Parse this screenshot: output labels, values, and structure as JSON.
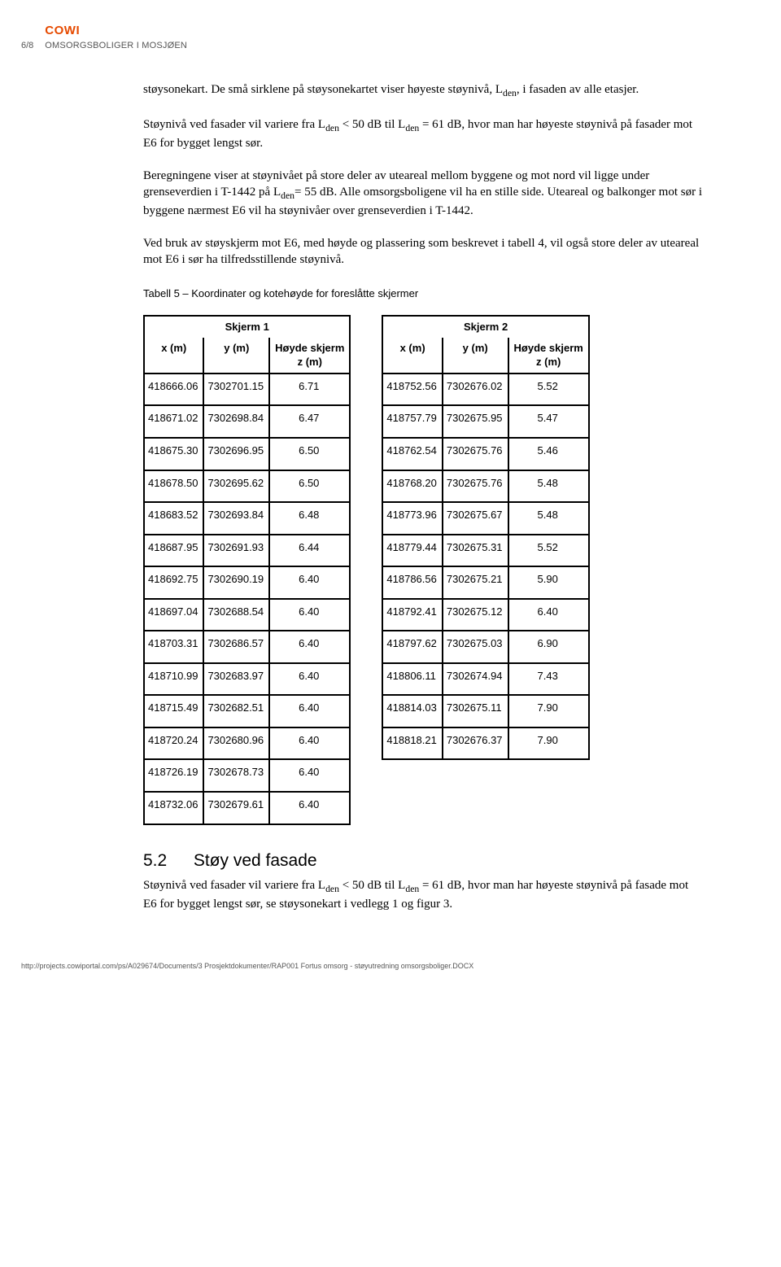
{
  "header": {
    "page_number": "6/8",
    "logo_text": "COWI",
    "logo_color": "#e64a00",
    "doc_title": "OMSORGSBOLIGER I MOSJØEN"
  },
  "paragraphs": {
    "p1a": "støysonekart. De små sirklene på støysonekartet viser høyeste støynivå, L",
    "p1b": ", i fasaden av alle etasjer.",
    "p2a": "Støynivå ved fasader vil variere fra L",
    "p2b": " < 50 dB til L",
    "p2c": " = 61 dB, hvor man har høyeste støynivå på fasader mot E6 for bygget lengst sør.",
    "p3a": "Beregningene viser at støynivået på store deler av uteareal mellom byggene og mot nord vil ligge under grenseverdien i T-1442 på L",
    "p3b": "= 55 dB. Alle omsorgsboligene vil ha en stille side. Uteareal og balkonger mot sør i byggene nærmest E6 vil ha støynivåer over grenseverdien i T-1442.",
    "p4": "Ved bruk av støyskjerm mot E6, med høyde og plassering som beskrevet i tabell 4, vil også store deler av uteareal mot E6 i sør ha tilfredsstillende støynivå.",
    "sub_den": "den"
  },
  "table_caption": "Tabell 5 – Koordinater og kotehøyde for foreslåtte skjermer",
  "tables": {
    "col_x": "x (m)",
    "col_y": "y (m)",
    "col_z1": "Høyde skjerm",
    "col_z2": "z (m)",
    "skjerm1": {
      "title": "Skjerm 1",
      "rows": [
        [
          "418666.06",
          "7302701.15",
          "6.71"
        ],
        [
          "418671.02",
          "7302698.84",
          "6.47"
        ],
        [
          "418675.30",
          "7302696.95",
          "6.50"
        ],
        [
          "418678.50",
          "7302695.62",
          "6.50"
        ],
        [
          "418683.52",
          "7302693.84",
          "6.48"
        ],
        [
          "418687.95",
          "7302691.93",
          "6.44"
        ],
        [
          "418692.75",
          "7302690.19",
          "6.40"
        ],
        [
          "418697.04",
          "7302688.54",
          "6.40"
        ],
        [
          "418703.31",
          "7302686.57",
          "6.40"
        ],
        [
          "418710.99",
          "7302683.97",
          "6.40"
        ],
        [
          "418715.49",
          "7302682.51",
          "6.40"
        ],
        [
          "418720.24",
          "7302680.96",
          "6.40"
        ],
        [
          "418726.19",
          "7302678.73",
          "6.40"
        ],
        [
          "418732.06",
          "7302679.61",
          "6.40"
        ]
      ]
    },
    "skjerm2": {
      "title": "Skjerm 2",
      "rows": [
        [
          "418752.56",
          "7302676.02",
          "5.52"
        ],
        [
          "418757.79",
          "7302675.95",
          "5.47"
        ],
        [
          "418762.54",
          "7302675.76",
          "5.46"
        ],
        [
          "418768.20",
          "7302675.76",
          "5.48"
        ],
        [
          "418773.96",
          "7302675.67",
          "5.48"
        ],
        [
          "418779.44",
          "7302675.31",
          "5.52"
        ],
        [
          "418786.56",
          "7302675.21",
          "5.90"
        ],
        [
          "418792.41",
          "7302675.12",
          "6.40"
        ],
        [
          "418797.62",
          "7302675.03",
          "6.90"
        ],
        [
          "418806.11",
          "7302674.94",
          "7.43"
        ],
        [
          "418814.03",
          "7302675.11",
          "7.90"
        ],
        [
          "418818.21",
          "7302676.37",
          "7.90"
        ]
      ]
    }
  },
  "section": {
    "number": "5.2",
    "title": "Støy ved fasade",
    "body_a": "Støynivå ved fasader vil variere fra L",
    "body_b": " < 50 dB til L",
    "body_c": " = 61 dB, hvor man har høyeste støynivå på fasade mot E6 for bygget lengst sør, se støysonekart i vedlegg 1 og figur 3."
  },
  "footer": "http://projects.cowiportal.com/ps/A029674/Documents/3 Prosjektdokumenter/RAP001 Fortus omsorg - støyutredning omsorgsboliger.DOCX"
}
